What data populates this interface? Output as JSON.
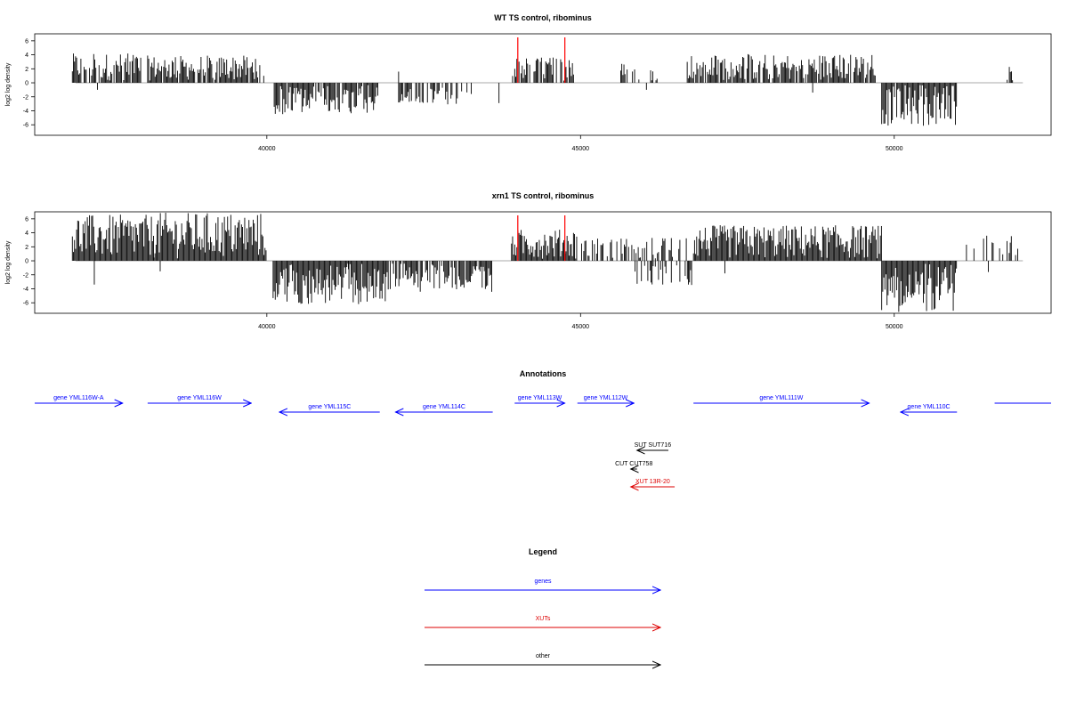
{
  "colors": {
    "gene": "#0000ff",
    "xut": "#dd0000",
    "other": "#000000",
    "peak": "#ff0000",
    "bar": "#000000",
    "baseline": "#aaaaaa"
  },
  "chart_data": [
    {
      "type": "bar",
      "title": "WT TS control, ribominus",
      "ylabel": "log2 log density",
      "xlim": [
        36300,
        52500
      ],
      "ylim": [
        -7.5,
        7
      ],
      "yticks": [
        -6,
        -4,
        -2,
        0,
        2,
        4,
        6
      ],
      "xticks": [
        40000,
        45000,
        50000
      ],
      "peak_markers": [
        44000,
        44750
      ],
      "segments": [
        {
          "from": 36900,
          "to": 38000,
          "sign": 1,
          "max": 3.9,
          "density": 0.8
        },
        {
          "from": 38100,
          "to": 39900,
          "sign": 1,
          "max": 3.6,
          "density": 0.9
        },
        {
          "from": 40100,
          "to": 41800,
          "sign": -1,
          "max": 4.2,
          "density": 0.85
        },
        {
          "from": 42100,
          "to": 43300,
          "sign": -1,
          "max": 2.8,
          "density": 0.6
        },
        {
          "from": 43900,
          "to": 44900,
          "sign": 1,
          "max": 3.4,
          "density": 0.7
        },
        {
          "from": 45300,
          "to": 46300,
          "sign": 1,
          "max": 2.6,
          "density": 0.15
        },
        {
          "from": 46700,
          "to": 49700,
          "sign": 1,
          "max": 3.8,
          "density": 0.85
        },
        {
          "from": 49800,
          "to": 51000,
          "sign": -1,
          "max": 6.0,
          "density": 0.95
        },
        {
          "from": 51800,
          "to": 51900,
          "sign": 1,
          "max": 2.8,
          "density": 0.9
        }
      ],
      "extra_bars": [
        {
          "x": 37300,
          "y": -1.0
        },
        {
          "x": 39950,
          "y": 1.0
        },
        {
          "x": 42100,
          "y": 1.6
        },
        {
          "x": 43700,
          "y": -2.9
        },
        {
          "x": 46050,
          "y": -1.0
        },
        {
          "x": 48700,
          "y": -1.4
        }
      ]
    },
    {
      "type": "bar",
      "title": "xrn1 TS control, ribominus",
      "ylabel": "log2 log density",
      "xlim": [
        36300,
        52500
      ],
      "ylim": [
        -7.5,
        7
      ],
      "yticks": [
        -6,
        -4,
        -2,
        0,
        2,
        4,
        6
      ],
      "xticks": [
        40000,
        45000,
        50000
      ],
      "peak_markers": [
        44000,
        44750
      ],
      "segments": [
        {
          "from": 36900,
          "to": 38200,
          "sign": 1,
          "max": 6.3,
          "density": 1.0
        },
        {
          "from": 38200,
          "to": 40000,
          "sign": 1,
          "max": 6.6,
          "density": 1.0
        },
        {
          "from": 40100,
          "to": 41900,
          "sign": -1,
          "max": 6.0,
          "density": 1.0
        },
        {
          "from": 41900,
          "to": 43600,
          "sign": -1,
          "max": 4.2,
          "density": 0.85
        },
        {
          "from": 43900,
          "to": 44950,
          "sign": 1,
          "max": 4.2,
          "density": 1.0
        },
        {
          "from": 45000,
          "to": 46700,
          "sign": 1,
          "max": 3.0,
          "density": 0.5
        },
        {
          "from": 45800,
          "to": 46800,
          "sign": -1,
          "max": 3.2,
          "density": 0.4
        },
        {
          "from": 46800,
          "to": 49800,
          "sign": 1,
          "max": 4.8,
          "density": 1.0
        },
        {
          "from": 49800,
          "to": 51000,
          "sign": -1,
          "max": 7.0,
          "density": 1.0
        },
        {
          "from": 51100,
          "to": 52000,
          "sign": 1,
          "max": 3.3,
          "density": 0.3
        }
      ],
      "extra_bars": [
        {
          "x": 37250,
          "y": -3.4
        },
        {
          "x": 38300,
          "y": -1.5
        },
        {
          "x": 41300,
          "y": -1.2
        },
        {
          "x": 47300,
          "y": -1.8
        },
        {
          "x": 51500,
          "y": -1.6
        }
      ]
    }
  ],
  "annotations": {
    "title": "Annotations",
    "xlim": [
      36300,
      52500
    ],
    "rows": {
      "genes": [
        {
          "label": "gene YML116W-A",
          "from": 36300,
          "to": 37700,
          "dir": "fwd",
          "level": 0
        },
        {
          "label": "gene YML116W",
          "from": 38100,
          "to": 39750,
          "dir": "fwd",
          "level": 0
        },
        {
          "label": "gene YML115C",
          "from": 40200,
          "to": 41800,
          "dir": "rev",
          "level": 1
        },
        {
          "label": "gene YML114C",
          "from": 42050,
          "to": 43600,
          "dir": "rev",
          "level": 1
        },
        {
          "label": "gene YML113W",
          "from": 43950,
          "to": 44750,
          "dir": "fwd",
          "level": 0
        },
        {
          "label": "gene YML112W",
          "from": 44950,
          "to": 45850,
          "dir": "fwd",
          "level": 0
        },
        {
          "label": "gene YML111W",
          "from": 46800,
          "to": 49600,
          "dir": "fwd",
          "level": 0
        },
        {
          "label": "gene YML110C",
          "from": 50100,
          "to": 51000,
          "dir": "rev",
          "level": 1
        },
        {
          "label": "",
          "from": 51600,
          "to": 52500,
          "dir": "none",
          "level": 0
        }
      ],
      "sut": [
        {
          "label": "SUT SUT716",
          "from": 45900,
          "to": 46400,
          "dir": "rev"
        }
      ],
      "cut": [
        {
          "label": "CUT CUT758",
          "from": 45800,
          "to": 45900,
          "dir": "rev"
        }
      ],
      "xut": [
        {
          "label": "XUT 13R-20",
          "from": 45800,
          "to": 46500,
          "dir": "rev"
        }
      ]
    }
  },
  "legend": {
    "title": "Legend",
    "items": [
      {
        "label": "genes",
        "kind": "gene"
      },
      {
        "label": "XUTs",
        "kind": "xut"
      },
      {
        "label": "other",
        "kind": "other"
      }
    ]
  }
}
